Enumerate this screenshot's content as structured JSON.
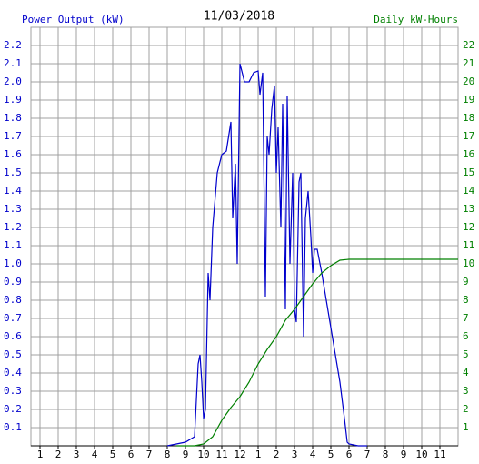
{
  "chart_data": {
    "type": "line",
    "title": "11/03/2018",
    "ylabel": "Power Output (kW)",
    "y2label": "Daily kW-Hours",
    "xlim": [
      0.5,
      24
    ],
    "xticks": [
      1,
      2,
      3,
      4,
      5,
      6,
      7,
      8,
      9,
      10,
      11,
      12,
      {
        "value": 13,
        "label": "1"
      },
      {
        "value": 14,
        "label": "2"
      },
      {
        "value": 15,
        "label": "3"
      },
      {
        "value": 16,
        "label": "4"
      },
      {
        "value": 17,
        "label": "5"
      },
      {
        "value": 18,
        "label": "6"
      },
      {
        "value": 19,
        "label": "7"
      },
      {
        "value": 20,
        "label": "8"
      },
      {
        "value": 21,
        "label": "9"
      },
      {
        "value": 22,
        "label": "10"
      },
      {
        "value": 23,
        "label": "11"
      }
    ],
    "ylim": [
      0,
      2.3
    ],
    "yticks": [
      0.1,
      0.2,
      0.3,
      0.4,
      0.5,
      0.6,
      0.7,
      0.8,
      0.9,
      {
        "value": 1,
        "label": "1.0"
      },
      1.1,
      1.2,
      1.3,
      1.4,
      1.5,
      1.6,
      1.7,
      1.8,
      1.9,
      {
        "value": 2,
        "label": "2.0"
      },
      2.1,
      2.2
    ],
    "y2lim": [
      0,
      23
    ],
    "y2ticks": [
      1,
      2,
      3,
      4,
      5,
      6,
      7,
      8,
      9,
      10,
      11,
      12,
      13,
      14,
      15,
      16,
      17,
      18,
      19,
      20,
      21,
      22
    ],
    "grid": true,
    "series": [
      {
        "color": "#0000cc",
        "x": [
          8.0,
          8.5,
          9.0,
          9.5,
          9.7,
          9.8,
          9.9,
          10.0,
          10.1,
          10.25,
          10.35,
          10.5,
          10.75,
          11.0,
          11.25,
          11.5,
          11.6,
          11.75,
          11.85,
          12.0,
          12.25,
          12.5,
          12.75,
          13.0,
          13.1,
          13.25,
          13.4,
          13.5,
          13.6,
          13.75,
          13.9,
          14.0,
          14.1,
          14.25,
          14.35,
          14.5,
          14.6,
          14.75,
          14.9,
          15.0,
          15.1,
          15.25,
          15.35,
          15.5,
          15.6,
          15.75,
          15.9,
          16.0,
          16.1,
          16.25,
          16.5,
          16.75,
          17.0,
          17.25,
          17.5,
          17.75,
          17.9,
          18.0,
          18.5,
          19.0
        ],
        "values": [
          0,
          0.01,
          0.02,
          0.05,
          0.45,
          0.5,
          0.35,
          0.15,
          0.2,
          0.95,
          0.8,
          1.2,
          1.5,
          1.6,
          1.62,
          1.78,
          1.25,
          1.55,
          1.0,
          2.1,
          2.0,
          2.0,
          2.05,
          2.06,
          1.93,
          2.05,
          0.82,
          1.7,
          1.6,
          1.85,
          1.98,
          1.5,
          1.75,
          1.2,
          1.88,
          0.75,
          1.92,
          1.0,
          1.5,
          0.75,
          0.68,
          1.45,
          1.5,
          0.6,
          1.25,
          1.4,
          1.15,
          0.95,
          1.08,
          1.08,
          0.95,
          0.8,
          0.65,
          0.5,
          0.35,
          0.15,
          0.02,
          0.01,
          0,
          0
        ]
      },
      {
        "color": "#008000",
        "axis": "y2",
        "x": [
          8.5,
          9.5,
          10.0,
          10.5,
          11.0,
          11.5,
          12.0,
          12.5,
          13.0,
          13.5,
          14.0,
          14.5,
          15.0,
          15.5,
          16.0,
          16.5,
          17.0,
          17.5,
          18.0,
          24.0
        ],
        "values": [
          0,
          0,
          0.1,
          0.5,
          1.4,
          2.1,
          2.7,
          3.5,
          4.5,
          5.3,
          6.0,
          6.9,
          7.5,
          8.2,
          8.9,
          9.5,
          9.9,
          10.2,
          10.25,
          10.25
        ]
      }
    ]
  }
}
